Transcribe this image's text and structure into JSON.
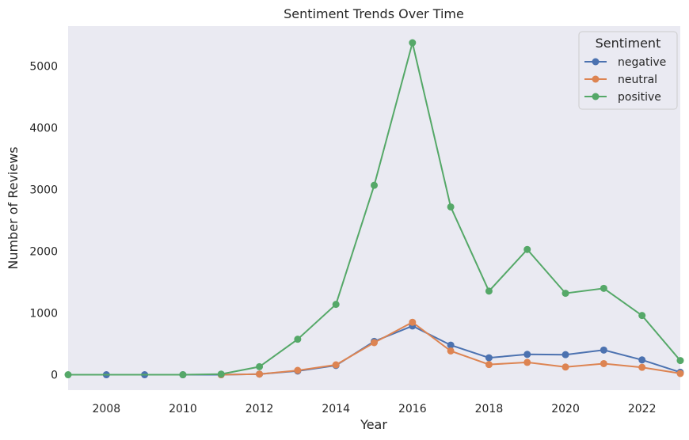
{
  "chart_data": {
    "type": "line",
    "title": "Sentiment Trends Over Time",
    "xlabel": "Year",
    "ylabel": "Number of Reviews",
    "xlim": [
      2007,
      2023
    ],
    "ylim": [
      -250,
      5650
    ],
    "xticks": [
      2008,
      2010,
      2012,
      2014,
      2016,
      2018,
      2020,
      2022
    ],
    "yticks": [
      0,
      1000,
      2000,
      3000,
      4000,
      5000
    ],
    "grid": false,
    "legend": {
      "title": "Sentiment",
      "position": "top-right"
    },
    "series": [
      {
        "name": "negative",
        "color": "#4c72b0",
        "points": [
          [
            2008,
            0
          ],
          [
            2009,
            0
          ],
          [
            2010,
            0
          ],
          [
            2011,
            0
          ],
          [
            2012,
            10
          ],
          [
            2013,
            60
          ],
          [
            2014,
            150
          ],
          [
            2015,
            540
          ],
          [
            2016,
            790
          ],
          [
            2017,
            480
          ],
          [
            2018,
            275
          ],
          [
            2019,
            330
          ],
          [
            2020,
            325
          ],
          [
            2021,
            400
          ],
          [
            2022,
            240
          ],
          [
            2023,
            40
          ]
        ]
      },
      {
        "name": "neutral",
        "color": "#dd8452",
        "points": [
          [
            2011,
            0
          ],
          [
            2012,
            10
          ],
          [
            2013,
            70
          ],
          [
            2014,
            160
          ],
          [
            2015,
            520
          ],
          [
            2016,
            850
          ],
          [
            2017,
            385
          ],
          [
            2018,
            165
          ],
          [
            2019,
            200
          ],
          [
            2020,
            125
          ],
          [
            2021,
            180
          ],
          [
            2022,
            120
          ],
          [
            2023,
            20
          ]
        ]
      },
      {
        "name": "positive",
        "color": "#55a868",
        "points": [
          [
            2007,
            0
          ],
          [
            2010,
            0
          ],
          [
            2011,
            10
          ],
          [
            2012,
            130
          ],
          [
            2013,
            575
          ],
          [
            2014,
            1140
          ],
          [
            2015,
            3070
          ],
          [
            2016,
            5380
          ],
          [
            2017,
            2720
          ],
          [
            2018,
            1355
          ],
          [
            2019,
            2030
          ],
          [
            2020,
            1320
          ],
          [
            2021,
            1400
          ],
          [
            2022,
            960
          ],
          [
            2023,
            230
          ]
        ]
      }
    ]
  }
}
